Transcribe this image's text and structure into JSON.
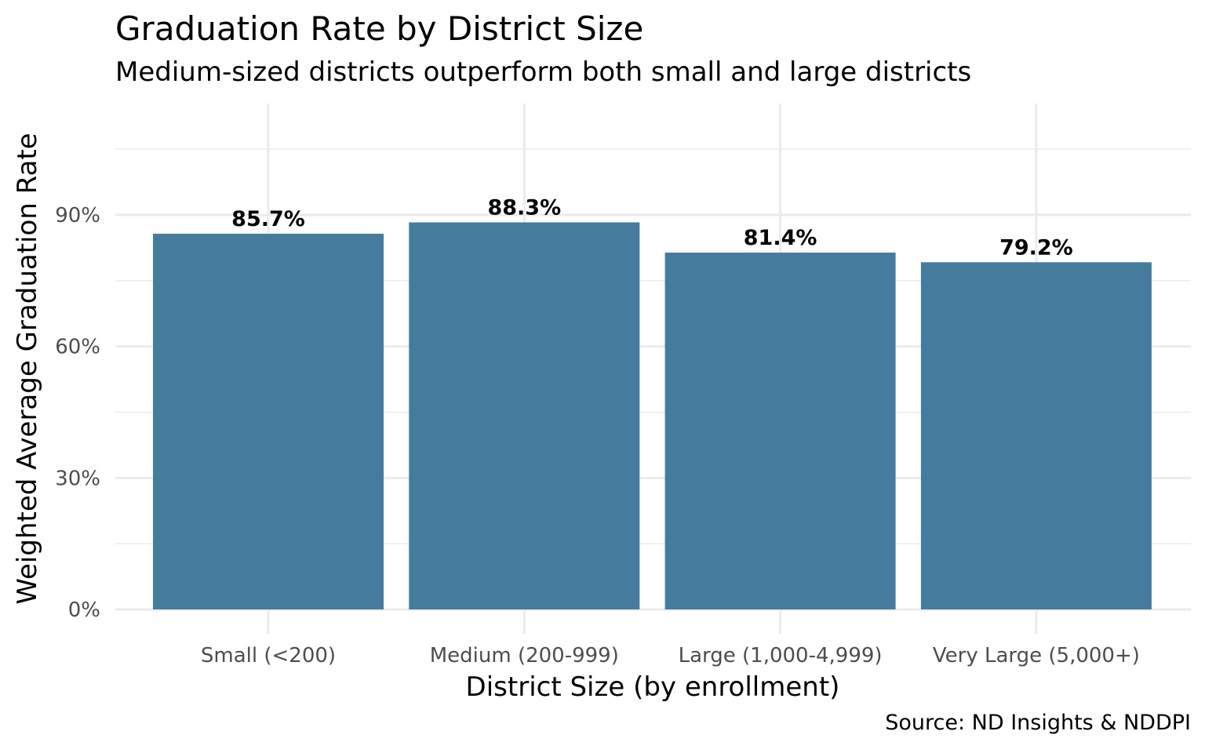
{
  "chart_data": {
    "type": "bar",
    "title": "Graduation Rate by District Size",
    "subtitle": "Medium-sized districts outperform both small and large districts",
    "caption": "Source: ND Insights & NDDPI",
    "xlabel": "District Size (by enrollment)",
    "ylabel": "Weighted Average Graduation Rate",
    "categories": [
      "Small (<200)",
      "Medium (200-999)",
      "Large (1,000-4,999)",
      "Very Large (5,000+)"
    ],
    "values": [
      85.7,
      88.3,
      81.4,
      79.2
    ],
    "data_labels": [
      "85.7%",
      "88.3%",
      "81.4%",
      "79.2%"
    ],
    "y_ticks": [
      0,
      30,
      60,
      90
    ],
    "y_tick_labels": [
      "0%",
      "30%",
      "60%",
      "90%"
    ],
    "ylim": [
      0,
      105
    ],
    "grid": true,
    "legend": "none",
    "bar_color": "#457b9d"
  }
}
